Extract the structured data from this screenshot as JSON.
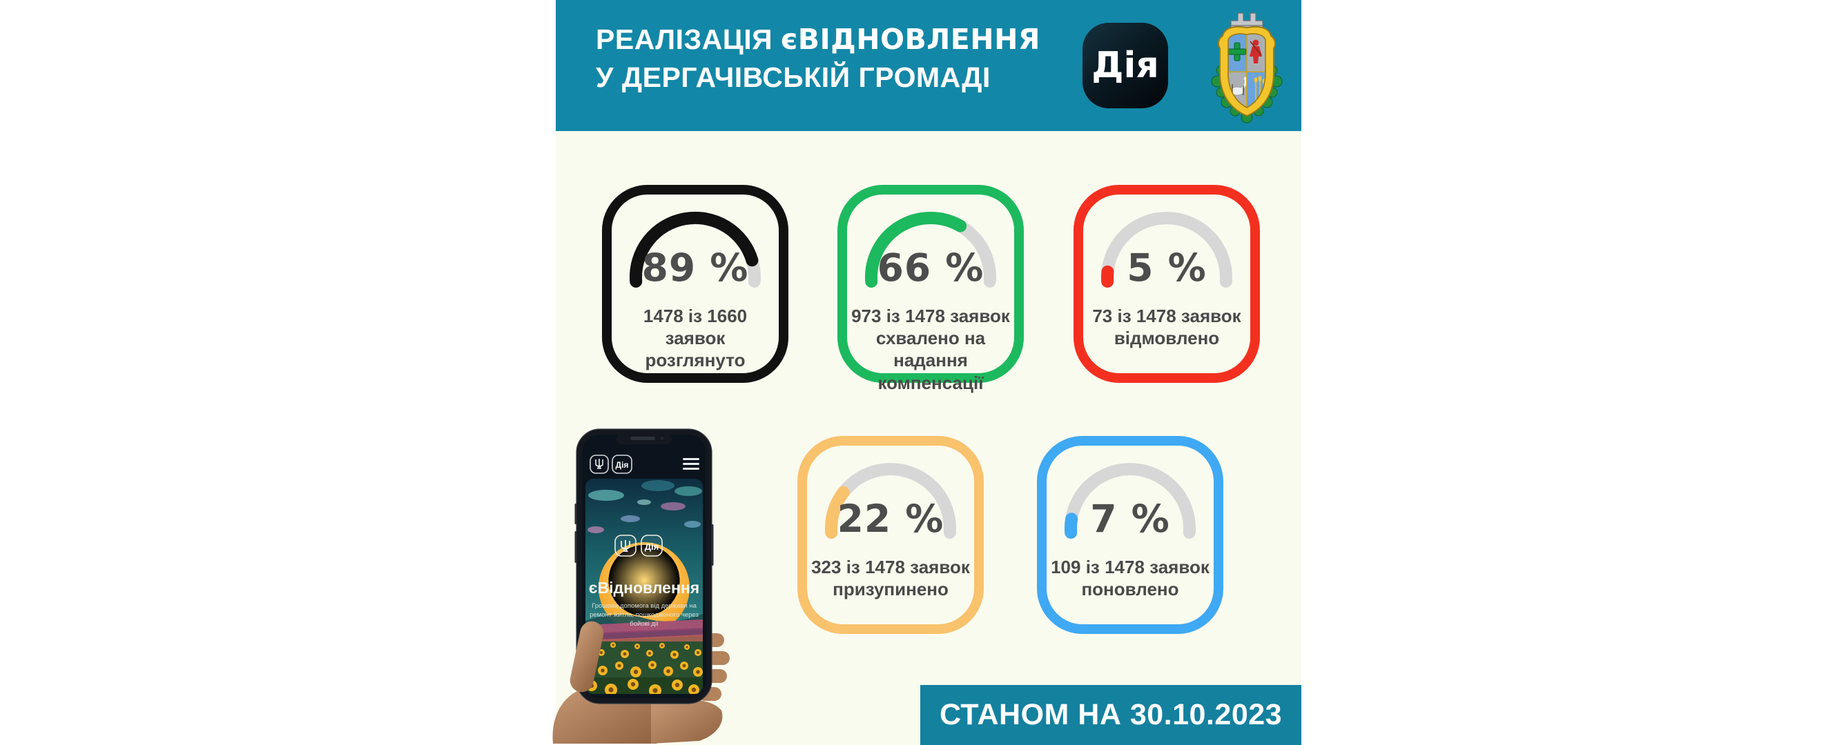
{
  "header": {
    "bg": "#1387a7",
    "title_regular": "РЕАЛІЗАЦІЯ ",
    "title_bold": "єВІДНОВЛЕННЯ",
    "title_line2": "У ДЕРГАЧІВСЬКІЙ ГРОМАДІ",
    "diia_icon_label": "Дія"
  },
  "cards": [
    {
      "percent": 89,
      "percent_label": "89 %",
      "desc1": "1478 із 1660 заявок",
      "desc2": "розглянуто",
      "color": "#111111"
    },
    {
      "percent": 66,
      "percent_label": "66 %",
      "desc1": "973 із 1478 заявок",
      "desc2": "схвалено на надання",
      "desc3": "компенсації",
      "color": "#1db95e"
    },
    {
      "percent": 5,
      "percent_label": "5 %",
      "desc1": "73 із 1478 заявок",
      "desc2": "відмовлено",
      "color": "#f3301f"
    },
    {
      "percent": 22,
      "percent_label": "22 %",
      "desc1": "323 із 1478 заявок",
      "desc2": "призупинено",
      "color": "#f9c26d"
    },
    {
      "percent": 7,
      "percent_label": "7 %",
      "desc1": "109 із 1478 заявок",
      "desc2": "поновлено",
      "color": "#3fa9f3"
    }
  ],
  "phone": {
    "statusbar_app": "Дія",
    "logo_label": "Дія",
    "screen_title": "єВідновлення",
    "subtitle1": "Грошова допомога від держави на",
    "subtitle2": "ремонт житла, пошкодженого через",
    "subtitle3": "бойові дії"
  },
  "footer": {
    "date_label": "СТАНОМ НА 30.10.2023",
    "bg": "#14819f"
  },
  "colors": {
    "content_bg": "#fafbef",
    "track": "#d7d7d7",
    "number_text": "#4d4d4d",
    "desc_text": "#4a4a4a"
  },
  "chart_data": [
    {
      "type": "gauge",
      "title": "розглянуто",
      "percent": 89,
      "value": 1478,
      "total": 1660,
      "color": "#111111",
      "track": "#d7d7d7"
    },
    {
      "type": "gauge",
      "title": "схвалено на надання компенсації",
      "percent": 66,
      "value": 973,
      "total": 1478,
      "color": "#1db95e",
      "track": "#d7d7d7"
    },
    {
      "type": "gauge",
      "title": "відмовлено",
      "percent": 5,
      "value": 73,
      "total": 1478,
      "color": "#f3301f",
      "track": "#d7d7d7"
    },
    {
      "type": "gauge",
      "title": "призупинено",
      "percent": 22,
      "value": 323,
      "total": 1478,
      "color": "#f9c26d",
      "track": "#d7d7d7"
    },
    {
      "type": "gauge",
      "title": "поновлено",
      "percent": 7,
      "value": 109,
      "total": 1478,
      "color": "#3fa9f3",
      "track": "#d7d7d7"
    }
  ]
}
